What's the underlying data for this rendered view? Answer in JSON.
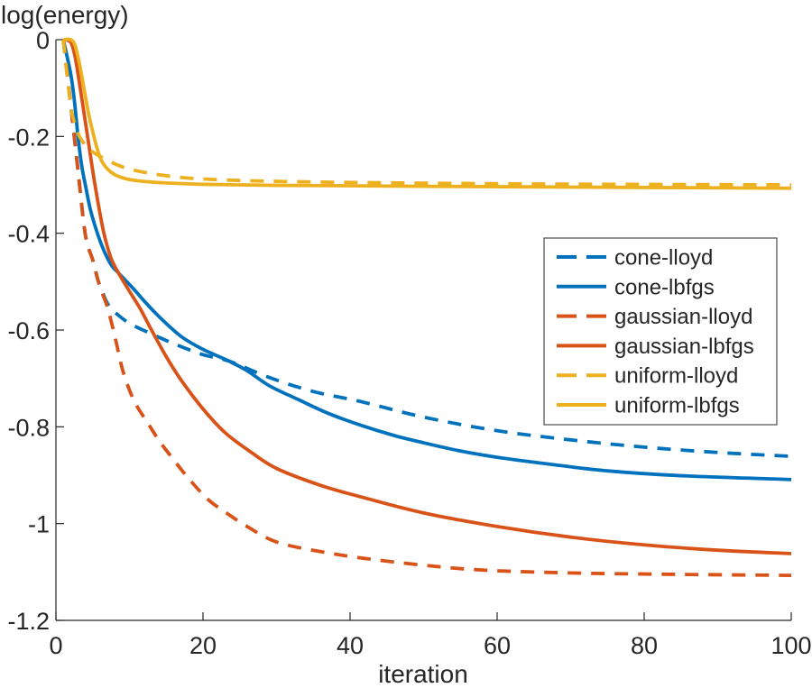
{
  "chart_data": {
    "type": "line",
    "title": "",
    "ylabel": "log(energy)",
    "xlabel": "iteration",
    "xlim": [
      0,
      100
    ],
    "ylim": [
      -1.2,
      0
    ],
    "grid": false,
    "legend_position": "right-center",
    "xticks": [
      0,
      20,
      40,
      60,
      80,
      100
    ],
    "xtick_labels": [
      "0",
      "20",
      "40",
      "60",
      "80",
      "100"
    ],
    "yticks": [
      0,
      -0.2,
      -0.4,
      -0.6,
      -0.8,
      -1,
      -1.2
    ],
    "ytick_labels": [
      "0",
      "-0.2",
      "-0.4",
      "-0.6",
      "-0.8",
      "-1",
      "-1.2"
    ],
    "colors": {
      "blue": "#0072BD",
      "orange": "#D95319",
      "yellow": "#EDB120",
      "axis": "#262626"
    },
    "series": [
      {
        "name": "cone-lloyd",
        "color": "#0072BD",
        "style": "dashed",
        "points": [
          [
            1,
            0
          ],
          [
            1.6,
            -0.08
          ],
          [
            2.2,
            -0.16
          ],
          [
            3,
            -0.27
          ],
          [
            4,
            -0.403
          ],
          [
            5,
            -0.455
          ],
          [
            5.7,
            -0.496
          ],
          [
            6.2,
            -0.517
          ],
          [
            7,
            -0.545
          ],
          [
            8,
            -0.563
          ],
          [
            10,
            -0.586
          ],
          [
            13,
            -0.608
          ],
          [
            16,
            -0.628
          ],
          [
            20,
            -0.651
          ],
          [
            23.5,
            -0.664
          ],
          [
            29,
            -0.698
          ],
          [
            35,
            -0.727
          ],
          [
            41.5,
            -0.748
          ],
          [
            50,
            -0.78
          ],
          [
            60,
            -0.808
          ],
          [
            70,
            -0.827
          ],
          [
            80,
            -0.842
          ],
          [
            90,
            -0.853
          ],
          [
            100,
            -0.861
          ]
        ]
      },
      {
        "name": "cone-lbfgs",
        "color": "#0072BD",
        "style": "solid",
        "points": [
          [
            1,
            0
          ],
          [
            2,
            -0.07
          ],
          [
            2.5,
            -0.125
          ],
          [
            3,
            -0.2
          ],
          [
            3.5,
            -0.26
          ],
          [
            4,
            -0.3
          ],
          [
            4.7,
            -0.352
          ],
          [
            5.7,
            -0.403
          ],
          [
            6.5,
            -0.435
          ],
          [
            7.5,
            -0.465
          ],
          [
            8.5,
            -0.482
          ],
          [
            9.5,
            -0.498
          ],
          [
            10.5,
            -0.514
          ],
          [
            12,
            -0.54
          ],
          [
            14,
            -0.572
          ],
          [
            17,
            -0.613
          ],
          [
            20,
            -0.64
          ],
          [
            23.5,
            -0.664
          ],
          [
            26,
            -0.684
          ],
          [
            29,
            -0.715
          ],
          [
            33,
            -0.744
          ],
          [
            37,
            -0.772
          ],
          [
            41.5,
            -0.797
          ],
          [
            46,
            -0.818
          ],
          [
            50,
            -0.833
          ],
          [
            55,
            -0.85
          ],
          [
            60,
            -0.863
          ],
          [
            67,
            -0.877
          ],
          [
            75,
            -0.891
          ],
          [
            85,
            -0.901
          ],
          [
            100,
            -0.909
          ]
        ]
      },
      {
        "name": "gaussian-lloyd",
        "color": "#D95319",
        "style": "dashed",
        "points": [
          [
            1,
            0
          ],
          [
            1.6,
            -0.08
          ],
          [
            2.2,
            -0.16
          ],
          [
            3,
            -0.27
          ],
          [
            4,
            -0.403
          ],
          [
            5,
            -0.455
          ],
          [
            5.7,
            -0.496
          ],
          [
            6.2,
            -0.52
          ],
          [
            7,
            -0.553
          ],
          [
            8,
            -0.612
          ],
          [
            9,
            -0.679
          ],
          [
            10,
            -0.724
          ],
          [
            11,
            -0.757
          ],
          [
            12.4,
            -0.79
          ],
          [
            14,
            -0.828
          ],
          [
            16,
            -0.868
          ],
          [
            18,
            -0.906
          ],
          [
            20.6,
            -0.949
          ],
          [
            23,
            -0.976
          ],
          [
            26,
            -1.006
          ],
          [
            30,
            -1.038
          ],
          [
            36,
            -1.058
          ],
          [
            42,
            -1.072
          ],
          [
            50,
            -1.086
          ],
          [
            58,
            -1.096
          ],
          [
            70,
            -1.102
          ],
          [
            85,
            -1.105
          ],
          [
            100,
            -1.107
          ]
        ]
      },
      {
        "name": "gaussian-lbfgs",
        "color": "#D95319",
        "style": "solid",
        "points": [
          [
            1,
            0
          ],
          [
            2,
            -0.005
          ],
          [
            2.6,
            -0.035
          ],
          [
            3.2,
            -0.09
          ],
          [
            4,
            -0.17
          ],
          [
            4.5,
            -0.22
          ],
          [
            5.2,
            -0.29
          ],
          [
            6,
            -0.36
          ],
          [
            6.6,
            -0.405
          ],
          [
            7.5,
            -0.452
          ],
          [
            8.5,
            -0.482
          ],
          [
            10,
            -0.52
          ],
          [
            11.5,
            -0.557
          ],
          [
            13,
            -0.6
          ],
          [
            15,
            -0.655
          ],
          [
            17,
            -0.703
          ],
          [
            20,
            -0.763
          ],
          [
            23,
            -0.812
          ],
          [
            26.4,
            -0.851
          ],
          [
            30,
            -0.886
          ],
          [
            36,
            -0.921
          ],
          [
            42,
            -0.947
          ],
          [
            50,
            -0.978
          ],
          [
            60,
            -1.006
          ],
          [
            70,
            -1.028
          ],
          [
            80,
            -1.044
          ],
          [
            90,
            -1.055
          ],
          [
            100,
            -1.062
          ]
        ]
      },
      {
        "name": "uniform-lloyd",
        "color": "#EDB120",
        "style": "dashed",
        "points": [
          [
            1,
            0
          ],
          [
            1.5,
            -0.072
          ],
          [
            2.1,
            -0.145
          ],
          [
            2.6,
            -0.175
          ],
          [
            3.2,
            -0.2
          ],
          [
            4,
            -0.218
          ],
          [
            5,
            -0.232
          ],
          [
            6.5,
            -0.245
          ],
          [
            8.7,
            -0.261
          ],
          [
            11,
            -0.271
          ],
          [
            14,
            -0.279
          ],
          [
            18,
            -0.286
          ],
          [
            25,
            -0.291
          ],
          [
            35,
            -0.294
          ],
          [
            50,
            -0.2965
          ],
          [
            70,
            -0.2985
          ],
          [
            100,
            -0.3
          ]
        ]
      },
      {
        "name": "uniform-lbfgs",
        "color": "#EDB120",
        "style": "solid",
        "points": [
          [
            1,
            0
          ],
          [
            2,
            0
          ],
          [
            2.6,
            -0.012
          ],
          [
            3.2,
            -0.05
          ],
          [
            3.8,
            -0.1
          ],
          [
            4.4,
            -0.15
          ],
          [
            5,
            -0.19
          ],
          [
            5.6,
            -0.225
          ],
          [
            6.2,
            -0.25
          ],
          [
            7,
            -0.267
          ],
          [
            8,
            -0.279
          ],
          [
            9,
            -0.285
          ],
          [
            10,
            -0.289
          ],
          [
            12,
            -0.293
          ],
          [
            15,
            -0.296
          ],
          [
            20,
            -0.299
          ],
          [
            30,
            -0.301
          ],
          [
            50,
            -0.303
          ],
          [
            75,
            -0.305
          ],
          [
            100,
            -0.307
          ]
        ]
      }
    ],
    "legend_entries": [
      "cone-lloyd",
      "cone-lbfgs",
      "gaussian-lloyd",
      "gaussian-lbfgs",
      "uniform-lloyd",
      "uniform-lbfgs"
    ]
  }
}
